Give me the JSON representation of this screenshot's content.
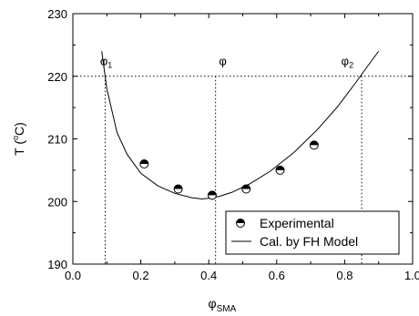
{
  "chart_data": {
    "type": "scatter",
    "xlabel_main": "φ",
    "xlabel_sub": "SMA",
    "ylabel_prefix": "T (",
    "ylabel_sup": "o",
    "ylabel_suffix": "C)",
    "xlim": [
      0.0,
      1.0
    ],
    "ylim": [
      190,
      230
    ],
    "xticks": [
      0.0,
      0.2,
      0.4,
      0.6,
      0.8,
      1.0
    ],
    "xtick_labels": [
      "0.0",
      "0.2",
      "0.4",
      "0.6",
      "0.8",
      "1.0"
    ],
    "yticks": [
      190,
      200,
      210,
      220,
      230
    ],
    "ytick_labels": [
      "190",
      "200",
      "210",
      "220",
      "230"
    ],
    "grid": false,
    "legend_position": "bottom-right",
    "series": [
      {
        "name": "Experimental",
        "kind": "points",
        "marker": "half-filled-circle",
        "x": [
          0.21,
          0.31,
          0.41,
          0.51,
          0.61,
          0.71
        ],
        "y": [
          206,
          202,
          201,
          202,
          205,
          209
        ]
      },
      {
        "name": "Cal. by FH Model",
        "kind": "line",
        "x": [
          0.085,
          0.1,
          0.13,
          0.16,
          0.2,
          0.25,
          0.3,
          0.35,
          0.38,
          0.4,
          0.43,
          0.47,
          0.52,
          0.58,
          0.65,
          0.72,
          0.78,
          0.83,
          0.87,
          0.9
        ],
        "y": [
          224.0,
          218.0,
          211.0,
          207.5,
          204.5,
          202.5,
          201.3,
          200.6,
          200.4,
          200.5,
          200.8,
          201.5,
          202.8,
          204.8,
          207.8,
          211.5,
          215.2,
          218.8,
          221.8,
          224.0
        ]
      }
    ],
    "reference_lines": [
      {
        "orientation": "horizontal",
        "value": 220,
        "style": "dotted"
      },
      {
        "orientation": "vertical",
        "value": 0.095,
        "style": "dotted"
      },
      {
        "orientation": "vertical",
        "value": 0.42,
        "style": "dotted"
      },
      {
        "orientation": "vertical",
        "value": 0.85,
        "style": "dotted"
      }
    ],
    "annotations": [
      {
        "main": "φ",
        "sub": "1",
        "x": 0.08,
        "y": 221.5
      },
      {
        "main": "φ",
        "sub": "",
        "x": 0.43,
        "y": 221.5
      },
      {
        "main": "φ",
        "sub": "2",
        "x": 0.79,
        "y": 221.5
      }
    ]
  }
}
